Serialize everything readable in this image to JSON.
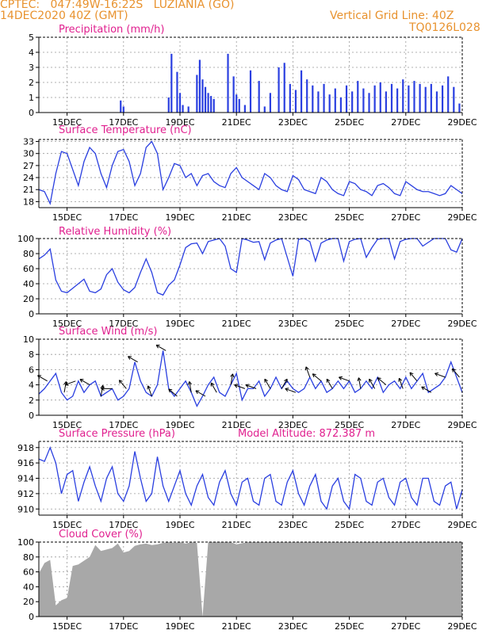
{
  "header": {
    "line1": "CPTEC:   047:49W-16:22S   LUZIANIA (GO)",
    "line2": "14DEC2020 40Z (GMT)",
    "grid_note": "Vertical Grid Line: 40Z",
    "code": "TQ0126L028"
  },
  "colors": {
    "header": "#e8922e",
    "title": "#e0208f",
    "series": "#2a3fe0",
    "cloud": "#a8a8a8",
    "arrows": "#000000"
  },
  "x_ticks": [
    "15DEC",
    "17DEC",
    "19DEC",
    "21DEC",
    "23DEC",
    "25DEC",
    "27DEC",
    "29DEC"
  ],
  "chart_data": [
    {
      "type": "bar",
      "title": "Precipitation (mm/h)",
      "ylim": [
        0,
        5
      ],
      "yticks": [
        0,
        1,
        2,
        3,
        4,
        5
      ],
      "x_days": [
        18.6,
        18.7,
        18.9,
        19.0,
        19.1,
        19.3,
        19.6,
        19.7,
        19.8,
        19.9,
        20.0,
        20.1,
        20.2,
        20.7,
        20.9,
        21.0,
        21.1,
        21.3,
        21.5,
        21.8,
        22.0,
        22.2,
        22.5,
        22.7,
        22.9,
        23.1,
        23.3,
        23.5,
        23.7,
        23.9,
        24.1,
        24.3,
        24.5,
        24.7,
        24.9,
        25.1,
        25.3,
        25.5,
        25.7,
        25.9,
        26.1,
        26.3,
        26.5,
        26.7,
        26.9,
        27.1,
        27.3,
        27.5,
        27.7,
        27.9,
        28.1,
        28.3,
        28.5,
        28.7,
        28.9
      ],
      "values": [
        1.0,
        3.9,
        2.7,
        1.3,
        0.5,
        0.4,
        2.5,
        3.5,
        2.2,
        1.7,
        1.3,
        1.1,
        0.9,
        3.9,
        2.4,
        1.2,
        0.9,
        0.5,
        2.8,
        2.1,
        0.4,
        1.3,
        3.0,
        3.3,
        1.9,
        1.5,
        2.8,
        2.2,
        1.8,
        1.4,
        1.9,
        1.2,
        1.6,
        1.0,
        1.8,
        1.4,
        2.1,
        1.6,
        1.3,
        1.8,
        2.0,
        1.4,
        1.9,
        1.6,
        2.2,
        1.8,
        2.1,
        1.9,
        1.7,
        1.9,
        1.4,
        1.8,
        2.4,
        1.7,
        0.6
      ],
      "early_x": [
        16.9,
        17.0
      ],
      "early_values": [
        0.8,
        0.4
      ]
    },
    {
      "type": "line",
      "title": "Surface Temperature (nC)",
      "ylim": [
        16.5,
        33.5
      ],
      "yticks": [
        18,
        21,
        24,
        27,
        30,
        33
      ],
      "x_days": [
        14.0,
        14.2,
        14.4,
        14.6,
        14.8,
        15.0,
        15.2,
        15.4,
        15.6,
        15.8,
        16.0,
        16.2,
        16.4,
        16.6,
        16.8,
        17.0,
        17.2,
        17.4,
        17.6,
        17.8,
        18.0,
        18.2,
        18.4,
        18.6,
        18.8,
        19.0,
        19.2,
        19.4,
        19.6,
        19.8,
        20.0,
        20.2,
        20.4,
        20.6,
        20.8,
        21.0,
        21.2,
        21.4,
        21.6,
        21.8,
        22.0,
        22.2,
        22.4,
        22.6,
        22.8,
        23.0,
        23.2,
        23.4,
        23.6,
        23.8,
        24.0,
        24.2,
        24.4,
        24.6,
        24.8,
        25.0,
        25.2,
        25.4,
        25.6,
        25.8,
        26.0,
        26.2,
        26.4,
        26.6,
        26.8,
        27.0,
        27.2,
        27.4,
        27.6,
        27.8,
        28.0,
        28.2,
        28.4,
        28.6,
        28.8,
        29.0
      ],
      "values": [
        21,
        20.5,
        17.5,
        25,
        30.5,
        30,
        26,
        22,
        28,
        31.5,
        30,
        25,
        21.5,
        27,
        30.5,
        31,
        28,
        22,
        25,
        31.5,
        33,
        30,
        21,
        24,
        27.5,
        27,
        24,
        25,
        22,
        24.5,
        25,
        23,
        22,
        21.5,
        25,
        26.5,
        24,
        23,
        22,
        21,
        25,
        24,
        22,
        21,
        20.5,
        24.5,
        23.5,
        21,
        20.5,
        20,
        24,
        23,
        21,
        20,
        19.5,
        23,
        22.5,
        21,
        20.5,
        19.5,
        22,
        22.5,
        21.5,
        20,
        19.5,
        23,
        22,
        21,
        20.5,
        20.5,
        20,
        19.5,
        20,
        22,
        21,
        20
      ]
    },
    {
      "type": "line",
      "title": "Relative Humidity (%)",
      "ylim": [
        0,
        100
      ],
      "yticks": [
        0,
        20,
        40,
        60,
        80,
        100
      ],
      "x_days": [
        14.0,
        14.2,
        14.4,
        14.6,
        14.8,
        15.0,
        15.2,
        15.4,
        15.6,
        15.8,
        16.0,
        16.2,
        16.4,
        16.6,
        16.8,
        17.0,
        17.2,
        17.4,
        17.6,
        17.8,
        18.0,
        18.2,
        18.4,
        18.6,
        18.8,
        19.0,
        19.2,
        19.4,
        19.6,
        19.8,
        20.0,
        20.2,
        20.4,
        20.6,
        20.8,
        21.0,
        21.2,
        21.4,
        21.6,
        21.8,
        22.0,
        22.2,
        22.4,
        22.6,
        22.8,
        23.0,
        23.2,
        23.4,
        23.6,
        23.8,
        24.0,
        24.2,
        24.4,
        24.6,
        24.8,
        25.0,
        25.2,
        25.4,
        25.6,
        25.8,
        26.0,
        26.2,
        26.4,
        26.6,
        26.8,
        27.0,
        27.2,
        27.4,
        27.6,
        27.8,
        28.0,
        28.2,
        28.4,
        28.6,
        28.8,
        29.0
      ],
      "values": [
        73,
        78,
        86,
        45,
        30,
        28,
        34,
        40,
        46,
        30,
        28,
        33,
        52,
        60,
        42,
        32,
        28,
        35,
        55,
        73,
        55,
        28,
        25,
        38,
        45,
        65,
        88,
        93,
        94,
        80,
        96,
        98,
        100,
        90,
        60,
        55,
        100,
        98,
        95,
        96,
        72,
        94,
        98,
        100,
        75,
        50,
        99,
        100,
        96,
        70,
        94,
        98,
        100,
        100,
        70,
        96,
        99,
        100,
        75,
        88,
        99,
        100,
        100,
        73,
        96,
        99,
        100,
        100,
        90,
        95,
        100,
        100,
        100,
        85,
        82,
        100
      ]
    },
    {
      "type": "line",
      "title": "Surface Wind (m/s)",
      "ylim": [
        0,
        10
      ],
      "yticks": [
        0,
        2,
        4,
        6,
        8,
        10
      ],
      "x_days": [
        14.0,
        14.2,
        14.4,
        14.6,
        14.8,
        15.0,
        15.2,
        15.4,
        15.6,
        15.8,
        16.0,
        16.2,
        16.4,
        16.6,
        16.8,
        17.0,
        17.2,
        17.4,
        17.6,
        17.8,
        18.0,
        18.2,
        18.4,
        18.6,
        18.8,
        19.0,
        19.2,
        19.4,
        19.6,
        19.8,
        20.0,
        20.2,
        20.4,
        20.6,
        20.8,
        21.0,
        21.2,
        21.4,
        21.6,
        21.8,
        22.0,
        22.2,
        22.4,
        22.6,
        22.8,
        23.0,
        23.2,
        23.4,
        23.6,
        23.8,
        24.0,
        24.2,
        24.4,
        24.6,
        24.8,
        25.0,
        25.2,
        25.4,
        25.6,
        25.8,
        26.0,
        26.2,
        26.4,
        26.6,
        26.8,
        27.0,
        27.2,
        27.4,
        27.6,
        27.8,
        28.0,
        28.2,
        28.4,
        28.6,
        28.8,
        29.0
      ],
      "values": [
        2.8,
        3.5,
        4.5,
        5.5,
        3.0,
        2.0,
        2.5,
        4.5,
        3.0,
        4.0,
        4.5,
        2.5,
        3.0,
        3.5,
        2.0,
        2.5,
        3.5,
        7.0,
        4.5,
        3.0,
        2.5,
        4.0,
        8.5,
        3.5,
        2.5,
        3.5,
        4.5,
        3.0,
        1.2,
        2.5,
        4.0,
        5.0,
        3.0,
        2.5,
        4.0,
        5.5,
        2.0,
        3.5,
        3.5,
        4.5,
        2.5,
        3.5,
        5.0,
        3.5,
        4.5,
        3.5,
        3.0,
        3.5,
        5.0,
        3.5,
        4.5,
        3.0,
        3.5,
        4.5,
        3.5,
        4.5,
        3.0,
        3.5,
        4.5,
        3.5,
        5.0,
        3.0,
        4.0,
        4.5,
        3.5,
        5.0,
        3.5,
        4.5,
        5.5,
        3.0,
        3.5,
        4.0,
        5.0,
        7.0,
        5.0,
        3.0
      ]
    },
    {
      "type": "line",
      "title": "Surface Pressure (hPa)",
      "annotation": "Model Altitude: 872.387 m",
      "ylim": [
        909.2,
        918.8
      ],
      "yticks": [
        910,
        912,
        914,
        916,
        918
      ],
      "x_days": [
        14.0,
        14.2,
        14.4,
        14.6,
        14.8,
        15.0,
        15.2,
        15.4,
        15.6,
        15.8,
        16.0,
        16.2,
        16.4,
        16.6,
        16.8,
        17.0,
        17.2,
        17.4,
        17.6,
        17.8,
        18.0,
        18.2,
        18.4,
        18.6,
        18.8,
        19.0,
        19.2,
        19.4,
        19.6,
        19.8,
        20.0,
        20.2,
        20.4,
        20.6,
        20.8,
        21.0,
        21.2,
        21.4,
        21.6,
        21.8,
        22.0,
        22.2,
        22.4,
        22.6,
        22.8,
        23.0,
        23.2,
        23.4,
        23.6,
        23.8,
        24.0,
        24.2,
        24.4,
        24.6,
        24.8,
        25.0,
        25.2,
        25.4,
        25.6,
        25.8,
        26.0,
        26.2,
        26.4,
        26.6,
        26.8,
        27.0,
        27.2,
        27.4,
        27.6,
        27.8,
        28.0,
        28.2,
        28.4,
        28.6,
        28.8,
        29.0
      ],
      "values": [
        916.5,
        916.2,
        918,
        916,
        912,
        914.5,
        915,
        911,
        913.5,
        915.5,
        913,
        911,
        914,
        915.5,
        912,
        911,
        913,
        917.5,
        914,
        911,
        912,
        916.8,
        913,
        911,
        913,
        915,
        912,
        910.5,
        913,
        914.5,
        911.5,
        910.5,
        913.5,
        915,
        912,
        910.5,
        913.5,
        914,
        911,
        910.5,
        914,
        914.5,
        911,
        910.5,
        913.5,
        915,
        912,
        910.5,
        913,
        914.5,
        911,
        910,
        913,
        914,
        911,
        910,
        914.5,
        914,
        911,
        910.5,
        913.5,
        914,
        911.5,
        910.5,
        913.5,
        914,
        911.5,
        910.5,
        914,
        914,
        911,
        910.5,
        913,
        913.5,
        910,
        912.5
      ]
    },
    {
      "type": "area",
      "title": "Cloud Cover (%)",
      "ylim": [
        0,
        100
      ],
      "yticks": [
        0,
        20,
        40,
        60,
        80,
        100
      ],
      "x_days": [
        14.0,
        14.2,
        14.4,
        14.6,
        14.8,
        15.0,
        15.2,
        15.4,
        15.6,
        15.8,
        16.0,
        16.2,
        16.4,
        16.6,
        16.8,
        17.0,
        17.2,
        17.4,
        17.6,
        17.8,
        18.0,
        18.2,
        18.4,
        18.6,
        18.8,
        19.0,
        19.2,
        19.4,
        19.6,
        19.8,
        20.0,
        20.2,
        20.4,
        20.6,
        20.8,
        21.0,
        21.4,
        21.8,
        22.2,
        22.6,
        23.0,
        23.4,
        23.8,
        24.2,
        24.6,
        25.0,
        25.4,
        25.8,
        26.2,
        26.6,
        27.0,
        27.4,
        27.8,
        28.2,
        28.6,
        29.0
      ],
      "values": [
        58,
        72,
        76,
        15,
        22,
        25,
        68,
        70,
        75,
        80,
        96,
        88,
        90,
        92,
        98,
        86,
        88,
        95,
        97,
        98,
        96,
        97,
        99,
        100,
        99,
        100,
        98,
        100,
        99,
        0,
        100,
        100,
        100,
        100,
        100,
        97,
        100,
        100,
        100,
        100,
        100,
        100,
        100,
        100,
        100,
        100,
        100,
        100,
        100,
        100,
        100,
        100,
        100,
        100,
        100,
        100
      ]
    }
  ],
  "wind_arrows": {
    "x_days": [
      14.3,
      14.9,
      15.3,
      15.8,
      16.2,
      16.6,
      17.1,
      17.5,
      18.0,
      18.5,
      18.9,
      19.4,
      19.9,
      20.3,
      20.8,
      21.3,
      21.7,
      22.2,
      22.6,
      23.1,
      23.6,
      24.0,
      24.4,
      25.0,
      25.4,
      25.9,
      26.3,
      26.9,
      27.4,
      27.9,
      28.4,
      28.9
    ],
    "direction_deg": [
      210,
      280,
      160,
      210,
      280,
      180,
      230,
      210,
      250,
      210,
      220,
      260,
      210,
      240,
      280,
      200,
      200,
      240,
      300,
      200,
      250,
      220,
      240,
      200,
      260,
      240,
      220,
      250,
      230,
      210,
      200,
      230
    ]
  }
}
